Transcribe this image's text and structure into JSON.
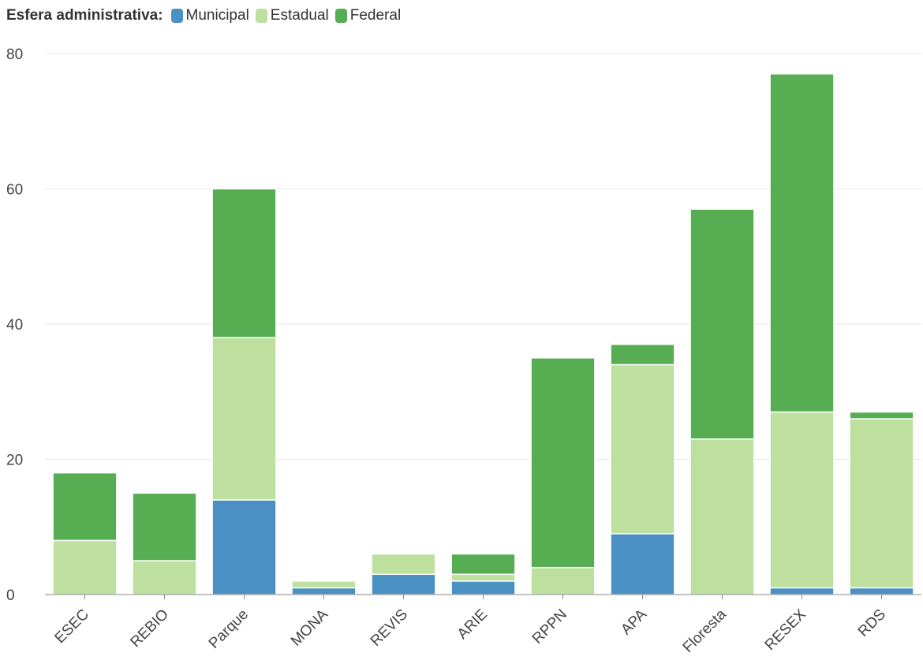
{
  "legend": {
    "title": "Esfera administrativa:",
    "items": [
      {
        "label": "Municipal",
        "color": "#4a90c2"
      },
      {
        "label": "Estadual",
        "color": "#bde09f"
      },
      {
        "label": "Federal",
        "color": "#57ad51"
      }
    ]
  },
  "chart_data": {
    "type": "bar",
    "stacked": true,
    "categories": [
      "ESEC",
      "REBIO",
      "Parque",
      "MONA",
      "REVIS",
      "ARIE",
      "RPPN",
      "APA",
      "Floresta",
      "RESEX",
      "RDS"
    ],
    "series": [
      {
        "name": "Municipal",
        "color": "#4a90c2",
        "values": [
          0,
          0,
          14,
          1,
          3,
          2,
          0,
          9,
          0,
          1,
          1
        ]
      },
      {
        "name": "Estadual",
        "color": "#bde09f",
        "values": [
          8,
          5,
          24,
          1,
          3,
          1,
          4,
          25,
          23,
          26,
          25
        ]
      },
      {
        "name": "Federal",
        "color": "#57ad51",
        "values": [
          10,
          10,
          22,
          0,
          0,
          3,
          31,
          3,
          34,
          50,
          1
        ]
      }
    ],
    "ylim": [
      0,
      80
    ],
    "yticks": [
      0,
      20,
      40,
      60,
      80
    ],
    "xlabel": "",
    "ylabel": "",
    "grid": true,
    "legend_position": "top-left"
  }
}
